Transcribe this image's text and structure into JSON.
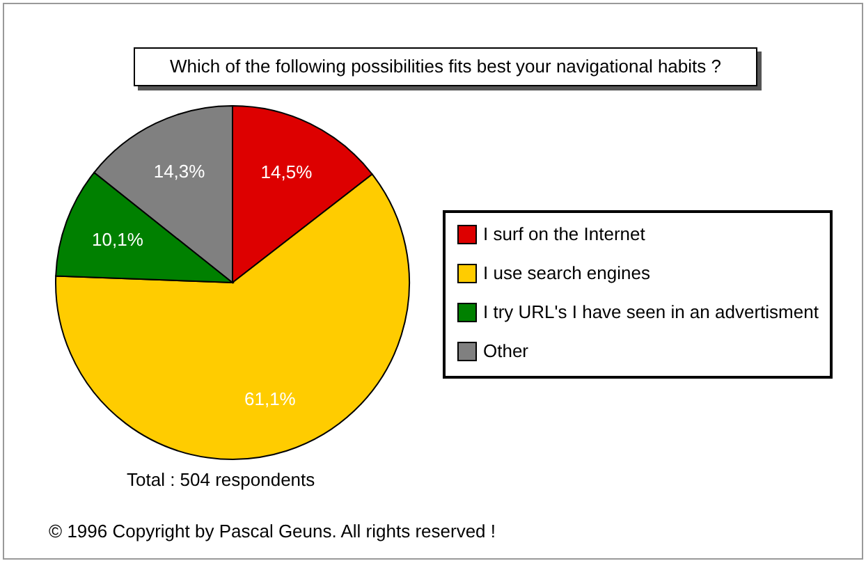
{
  "chart_data": {
    "type": "pie",
    "title": "Which of the following possibilities fits best your navigational habits ?",
    "categories": [
      "I surf on the Internet",
      "I use search engines",
      "I try URL's I have seen in an advertisment",
      "Other"
    ],
    "values": [
      14.5,
      61.1,
      10.1,
      14.3
    ],
    "colors": [
      "#dd0000",
      "#ffcc00",
      "#008000",
      "#808080"
    ],
    "value_labels": [
      "14,5%",
      "61,1%",
      "10,1%",
      "14,3%"
    ],
    "legend": "right",
    "annotations": [
      "Total :  504 respondents",
      "© 1996   Copyright by Pascal Geuns.  All rights reserved !"
    ]
  }
}
